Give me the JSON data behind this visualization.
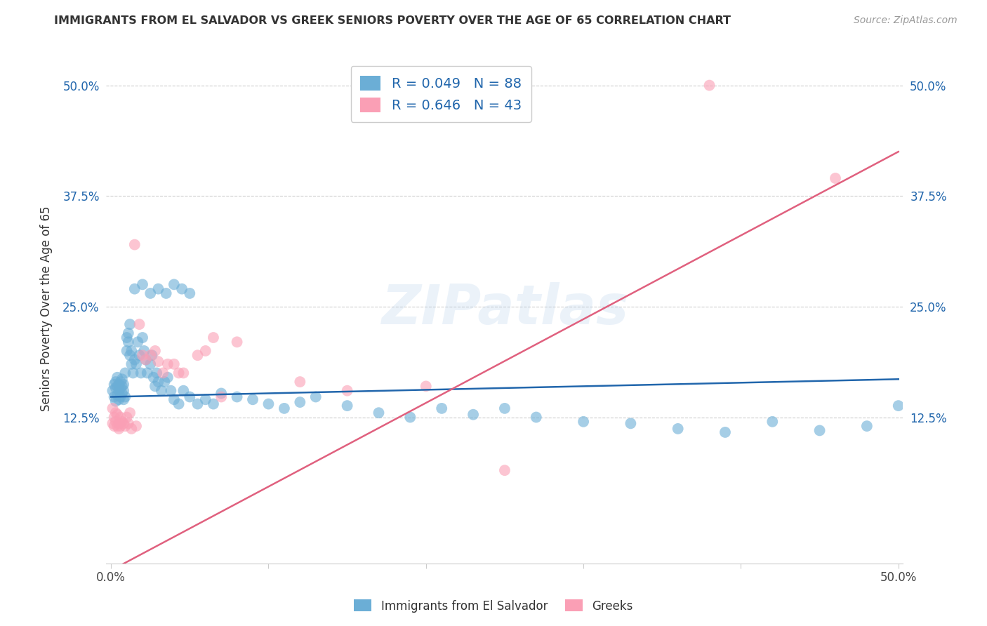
{
  "title": "IMMIGRANTS FROM EL SALVADOR VS GREEK SENIORS POVERTY OVER THE AGE OF 65 CORRELATION CHART",
  "source": "Source: ZipAtlas.com",
  "ylabel": "Seniors Poverty Over the Age of 65",
  "xlim": [
    0.0,
    0.5
  ],
  "ylim": [
    -0.04,
    0.535
  ],
  "yticks": [
    0.125,
    0.25,
    0.375,
    0.5
  ],
  "ytick_labels": [
    "12.5%",
    "25.0%",
    "37.5%",
    "50.0%"
  ],
  "xticks": [
    0.0,
    0.1,
    0.2,
    0.3,
    0.4,
    0.5
  ],
  "xtick_labels": [
    "0.0%",
    "",
    "",
    "",
    "",
    "50.0%"
  ],
  "blue_R": 0.049,
  "blue_N": 88,
  "pink_R": 0.646,
  "pink_N": 43,
  "blue_color": "#6baed6",
  "pink_color": "#fa9fb5",
  "blue_line_color": "#2166ac",
  "pink_line_color": "#e0607e",
  "watermark": "ZIPatlas",
  "legend_label_blue": "Immigrants from El Salvador",
  "legend_label_pink": "Greeks",
  "blue_line_x0": 0.0,
  "blue_line_y0": 0.148,
  "blue_line_x1": 0.5,
  "blue_line_y1": 0.168,
  "pink_line_x0": 0.0,
  "pink_line_y0": -0.048,
  "pink_line_x1": 0.5,
  "pink_line_y1": 0.425,
  "blue_points_x": [
    0.001,
    0.002,
    0.002,
    0.003,
    0.003,
    0.003,
    0.004,
    0.004,
    0.004,
    0.005,
    0.005,
    0.005,
    0.006,
    0.006,
    0.006,
    0.007,
    0.007,
    0.007,
    0.008,
    0.008,
    0.008,
    0.009,
    0.009,
    0.01,
    0.01,
    0.011,
    0.011,
    0.012,
    0.012,
    0.013,
    0.013,
    0.014,
    0.015,
    0.016,
    0.017,
    0.018,
    0.019,
    0.02,
    0.021,
    0.022,
    0.023,
    0.025,
    0.026,
    0.027,
    0.028,
    0.029,
    0.03,
    0.032,
    0.034,
    0.036,
    0.038,
    0.04,
    0.043,
    0.046,
    0.05,
    0.055,
    0.06,
    0.065,
    0.07,
    0.08,
    0.09,
    0.1,
    0.11,
    0.12,
    0.13,
    0.15,
    0.17,
    0.19,
    0.21,
    0.23,
    0.25,
    0.27,
    0.3,
    0.33,
    0.36,
    0.39,
    0.42,
    0.45,
    0.48,
    0.5,
    0.015,
    0.02,
    0.025,
    0.03,
    0.035,
    0.04,
    0.045,
    0.05
  ],
  "blue_points_y": [
    0.155,
    0.148,
    0.162,
    0.143,
    0.158,
    0.165,
    0.15,
    0.16,
    0.17,
    0.145,
    0.155,
    0.162,
    0.148,
    0.158,
    0.165,
    0.152,
    0.16,
    0.168,
    0.145,
    0.155,
    0.162,
    0.175,
    0.148,
    0.2,
    0.215,
    0.22,
    0.21,
    0.195,
    0.23,
    0.185,
    0.2,
    0.175,
    0.19,
    0.185,
    0.21,
    0.195,
    0.175,
    0.215,
    0.2,
    0.19,
    0.175,
    0.185,
    0.195,
    0.17,
    0.16,
    0.175,
    0.165,
    0.155,
    0.165,
    0.17,
    0.155,
    0.145,
    0.14,
    0.155,
    0.148,
    0.14,
    0.145,
    0.14,
    0.152,
    0.148,
    0.145,
    0.14,
    0.135,
    0.142,
    0.148,
    0.138,
    0.13,
    0.125,
    0.135,
    0.128,
    0.135,
    0.125,
    0.12,
    0.118,
    0.112,
    0.108,
    0.12,
    0.11,
    0.115,
    0.138,
    0.27,
    0.275,
    0.265,
    0.27,
    0.265,
    0.275,
    0.27,
    0.265
  ],
  "pink_points_x": [
    0.001,
    0.001,
    0.002,
    0.002,
    0.003,
    0.003,
    0.004,
    0.004,
    0.005,
    0.005,
    0.006,
    0.006,
    0.007,
    0.008,
    0.009,
    0.01,
    0.011,
    0.012,
    0.013,
    0.015,
    0.016,
    0.018,
    0.02,
    0.022,
    0.025,
    0.028,
    0.03,
    0.033,
    0.036,
    0.04,
    0.043,
    0.046,
    0.055,
    0.06,
    0.065,
    0.07,
    0.08,
    0.12,
    0.15,
    0.2,
    0.25,
    0.38,
    0.46
  ],
  "pink_points_y": [
    0.135,
    0.118,
    0.125,
    0.115,
    0.13,
    0.12,
    0.128,
    0.115,
    0.118,
    0.112,
    0.125,
    0.115,
    0.12,
    0.118,
    0.115,
    0.125,
    0.118,
    0.13,
    0.112,
    0.32,
    0.115,
    0.23,
    0.195,
    0.19,
    0.195,
    0.2,
    0.188,
    0.175,
    0.185,
    0.185,
    0.175,
    0.175,
    0.195,
    0.2,
    0.215,
    0.148,
    0.21,
    0.165,
    0.155,
    0.16,
    0.065,
    0.5,
    0.395
  ]
}
